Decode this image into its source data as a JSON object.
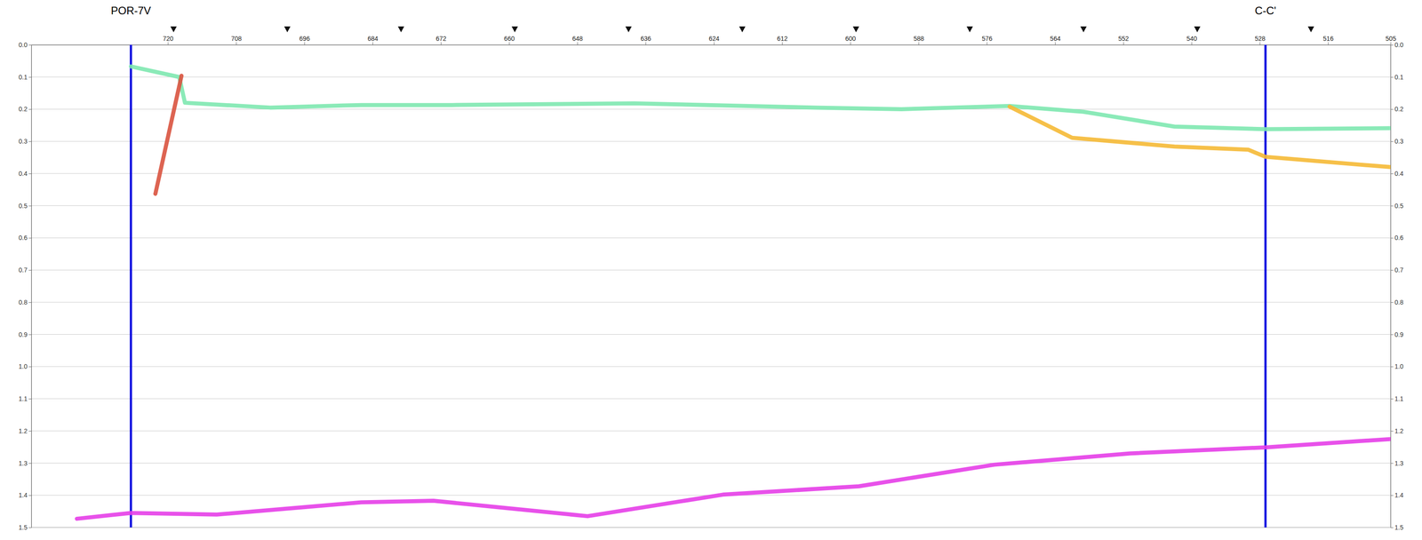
{
  "chart_data": {
    "type": "line",
    "xlim": [
      744,
      505
    ],
    "xticks": [
      720,
      708,
      696,
      684,
      672,
      660,
      648,
      636,
      624,
      612,
      600,
      588,
      576,
      564,
      552,
      540,
      528,
      516,
      505
    ],
    "ylim": [
      0,
      1.5
    ],
    "yticks": [
      {
        "value": 0,
        "label": "0.0"
      },
      0.1,
      0.2,
      0.3,
      0.4,
      0.5,
      0.6,
      0.7,
      0.8,
      0.9,
      {
        "value": 1,
        "label": "1.0"
      },
      1.1,
      1.2,
      1.3,
      1.4,
      1.5
    ],
    "grid": true,
    "series": [
      {
        "color": "#7ee8b0",
        "x": [
          726.5,
          718,
          717,
          702,
          686,
          670,
          638,
          606,
          591,
          572,
          559,
          543,
          527,
          505
        ],
        "values": [
          0.067,
          0.1,
          0.18,
          0.195,
          0.187,
          0.187,
          0.182,
          0.195,
          0.2,
          0.19,
          0.208,
          0.254,
          0.262,
          0.259
        ]
      },
      {
        "color": "#d9533f",
        "x": [
          717.6,
          722.2
        ],
        "values": [
          0.096,
          0.463
        ]
      },
      {
        "color": "#f5b935",
        "x": [
          572,
          561,
          543,
          530,
          527,
          505
        ],
        "values": [
          0.192,
          0.289,
          0.316,
          0.326,
          0.348,
          0.38
        ]
      },
      {
        "color": "#e53ee8",
        "x": [
          736,
          726.5,
          711.4,
          686,
          673.3,
          646.2,
          622.4,
          598.5,
          574.7,
          550.8,
          527,
          504.7
        ],
        "values": [
          1.473,
          1.455,
          1.46,
          1.422,
          1.417,
          1.465,
          1.398,
          1.372,
          1.305,
          1.27,
          1.251,
          1.225
        ]
      }
    ],
    "annotations": [
      {
        "text": "POR-7V",
        "x": 726.5,
        "color": "#1010e0"
      },
      {
        "text": "C-C'",
        "x": 527,
        "color": "#1010e0"
      }
    ],
    "shotpoint_markers": [
      719,
      699,
      679,
      659,
      639,
      619,
      599,
      579,
      559,
      539,
      519
    ]
  }
}
